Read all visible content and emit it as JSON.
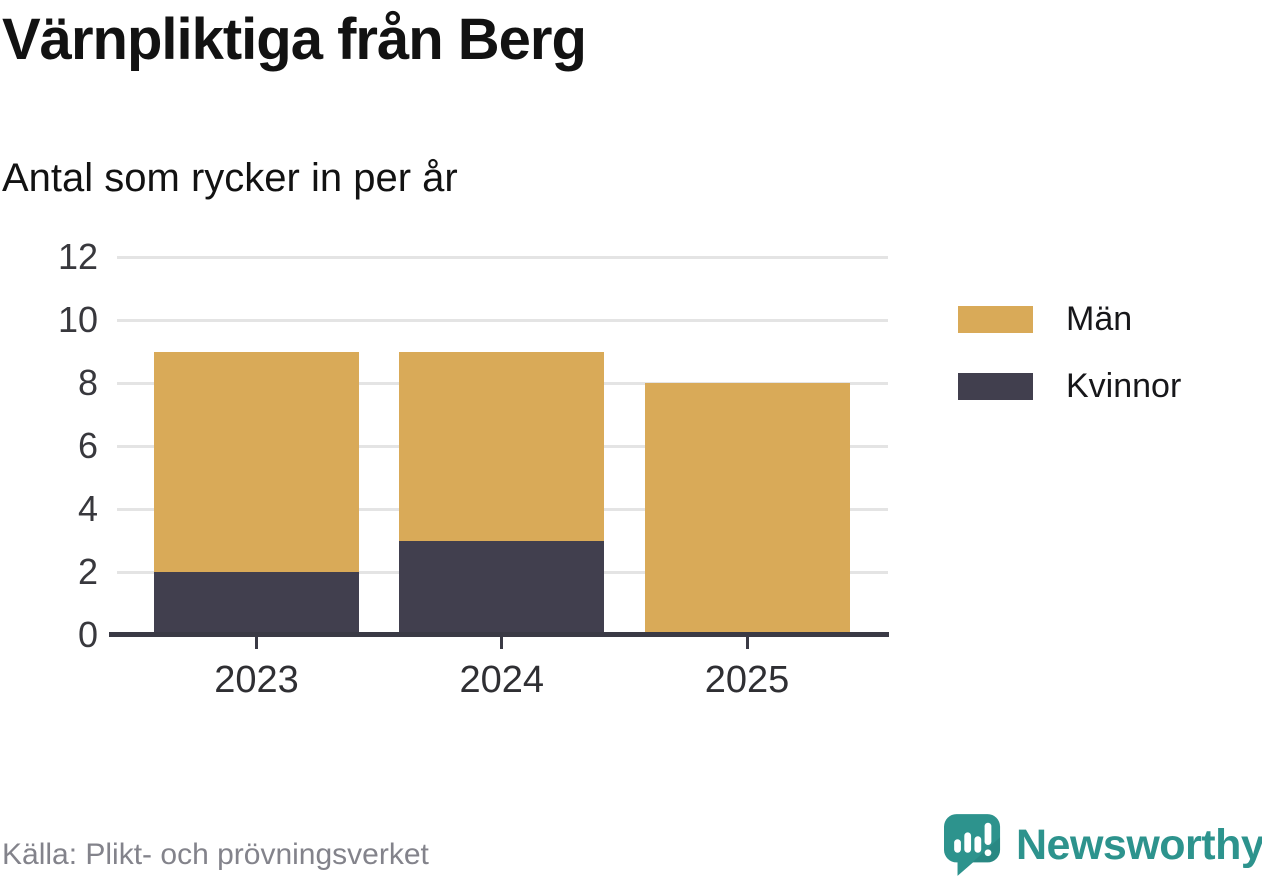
{
  "header": {
    "title": "Värnpliktiga från Berg",
    "subtitle": "Antal som rycker in per år"
  },
  "footer": {
    "source": "Källa: Plikt- och prövningsverket",
    "brand": "Newsworthy"
  },
  "colors": {
    "men_bar": "#d9aa58",
    "women_bar": "#413f4e",
    "gridline": "#e4e4e4",
    "axis": "#3a3a45",
    "source_text": "#83838b",
    "brand_teal": "#2d938d"
  },
  "chart_data": {
    "type": "bar",
    "stacked": true,
    "title": "Värnpliktiga från Berg",
    "subtitle": "Antal som rycker in per år",
    "categories": [
      "2023",
      "2024",
      "2025"
    ],
    "series": [
      {
        "name": "Män",
        "color": "#d9aa58",
        "values": [
          7,
          6,
          8
        ]
      },
      {
        "name": "Kvinnor",
        "color": "#413f4e",
        "values": [
          2,
          3,
          0
        ]
      }
    ],
    "stack_order_bottom_to_top": [
      "Kvinnor",
      "Män"
    ],
    "totals": [
      9,
      9,
      8
    ],
    "xlabel": "",
    "ylabel": "",
    "ylim": [
      0,
      12
    ],
    "yticks": [
      0,
      2,
      4,
      6,
      8,
      10,
      12
    ],
    "grid": "horizontal",
    "legend_position": "right",
    "source": "Källa: Plikt- och prövningsverket"
  }
}
